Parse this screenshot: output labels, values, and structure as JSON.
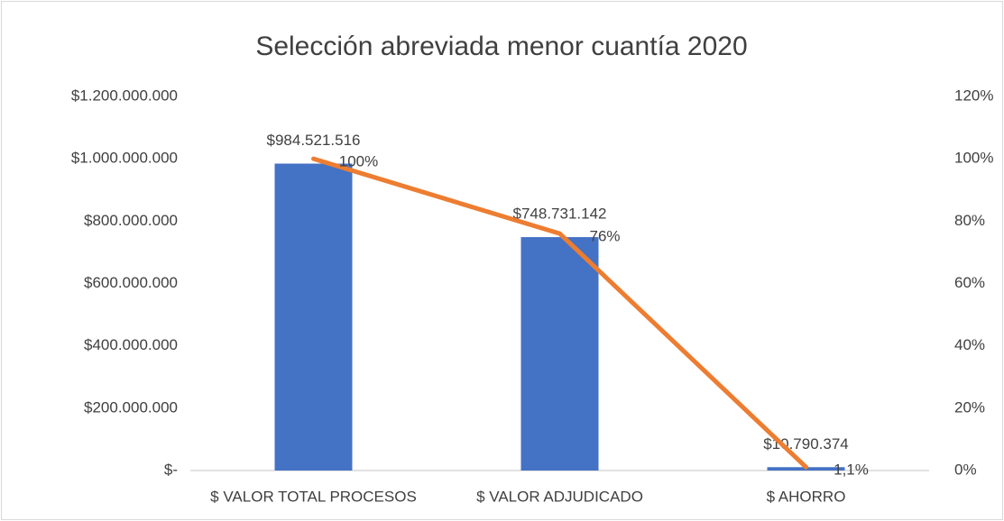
{
  "chart_data": {
    "type": "bar",
    "title": "Selección abreviada menor cuantía 2020",
    "categories": [
      "$ VALOR TOTAL PROCESOS",
      "$ VALOR ADJUDICADO",
      "$ AHORRO"
    ],
    "series": [
      {
        "type": "bar",
        "color": "#4472c4",
        "values": [
          984521516,
          748731142,
          10790374
        ],
        "value_labels": [
          "$984.521.516",
          "$748.731.142",
          "$10.790.374"
        ]
      },
      {
        "type": "line",
        "axis": "y2",
        "color": "#ed7d31",
        "values": [
          100,
          76,
          1.1
        ],
        "value_labels": [
          "100%",
          "76%",
          "1,1%"
        ]
      }
    ],
    "ylim": [
      0,
      1200000000
    ],
    "yticks": [
      {
        "value": 0,
        "label": "$-"
      },
      {
        "value": 200000000,
        "label": "$200.000.000"
      },
      {
        "value": 400000000,
        "label": "$400.000.000"
      },
      {
        "value": 600000000,
        "label": "$600.000.000"
      },
      {
        "value": 800000000,
        "label": "$800.000.000"
      },
      {
        "value": 1000000000,
        "label": "$1.000.000.000"
      },
      {
        "value": 1200000000,
        "label": "$1.200.000.000"
      }
    ],
    "y2lim": [
      0,
      120
    ],
    "y2ticks": [
      {
        "value": 0,
        "label": "0%"
      },
      {
        "value": 20,
        "label": "20%"
      },
      {
        "value": 40,
        "label": "40%"
      },
      {
        "value": 60,
        "label": "60%"
      },
      {
        "value": 80,
        "label": "80%"
      },
      {
        "value": 100,
        "label": "100%"
      },
      {
        "value": 120,
        "label": "120%"
      }
    ],
    "grid": false
  }
}
